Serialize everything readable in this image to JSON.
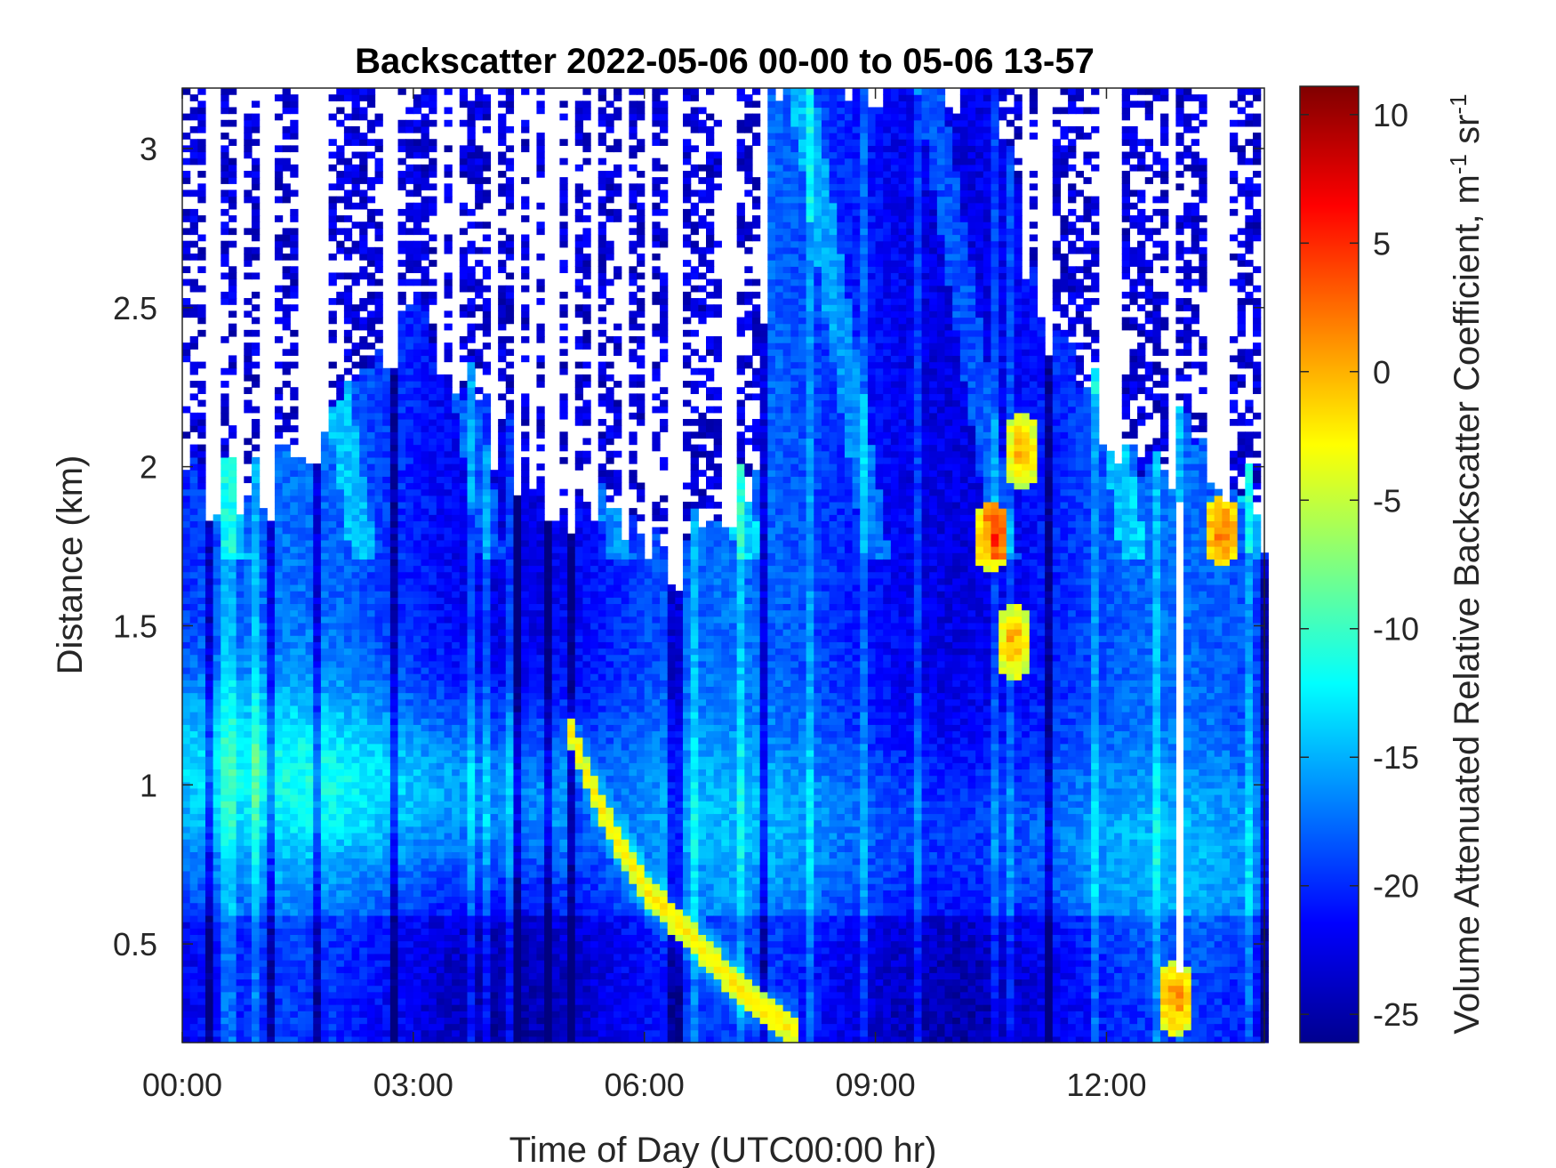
{
  "chart_data": {
    "type": "heatmap",
    "title": "Backscatter 2022-05-06 00-00 to 05-06 13-57",
    "xlabel": "Time of Day (UTC00:00 hr)",
    "ylabel": "Distance (km)",
    "colorbar_label": "Volume Attenuated Relative Backscatter Coefficient, m",
    "colorbar_label_sup1": "-1",
    "colorbar_label_mid": " sr",
    "colorbar_label_sup2": "-1",
    "colormap": "jet",
    "x_ticks": [
      {
        "value": 0,
        "label": "00:00"
      },
      {
        "value": 3,
        "label": "03:00"
      },
      {
        "value": 6,
        "label": "06:00"
      },
      {
        "value": 9,
        "label": "09:00"
      },
      {
        "value": 12,
        "label": "12:00"
      }
    ],
    "y_ticks": [
      {
        "value": 0.5,
        "label": "0.5"
      },
      {
        "value": 1,
        "label": "1"
      },
      {
        "value": 1.5,
        "label": "1.5"
      },
      {
        "value": 2,
        "label": "2"
      },
      {
        "value": 2.5,
        "label": "2.5"
      },
      {
        "value": 3,
        "label": "3"
      }
    ],
    "colorbar_ticks": [
      {
        "value": -25,
        "label": "-25"
      },
      {
        "value": -20,
        "label": "-20"
      },
      {
        "value": -15,
        "label": "-15"
      },
      {
        "value": -10,
        "label": "-10"
      },
      {
        "value": -5,
        "label": "-5"
      },
      {
        "value": 0,
        "label": "0"
      },
      {
        "value": 5,
        "label": "5"
      },
      {
        "value": 10,
        "label": "10"
      }
    ],
    "xlim": [
      0,
      14.05
    ],
    "ylim": [
      0.19,
      3.19
    ],
    "clim": [
      -26.1,
      11.1
    ],
    "time_resolution_hr": 0.1,
    "height_bin_km": 0.02,
    "features": {
      "cloud_top_boundary_km": [
        {
          "t": 0.0,
          "h": 1.97
        },
        {
          "t": 1.0,
          "h": 1.9
        },
        {
          "t": 2.0,
          "h": 2.2
        },
        {
          "t": 3.0,
          "h": 2.5
        },
        {
          "t": 4.0,
          "h": 2.1
        },
        {
          "t": 5.0,
          "h": 1.9
        },
        {
          "t": 5.6,
          "h": 1.85
        },
        {
          "t": 6.5,
          "h": 1.72
        },
        {
          "t": 7.0,
          "h": 1.85
        },
        {
          "t": 7.5,
          "h": 1.95
        },
        {
          "t": 7.6,
          "h": 3.2
        },
        {
          "t": 10.5,
          "h": 3.2
        },
        {
          "t": 11.0,
          "h": 2.6
        },
        {
          "t": 11.8,
          "h": 2.2
        },
        {
          "t": 12.6,
          "h": 1.9
        },
        {
          "t": 13.0,
          "h": 2.1
        },
        {
          "t": 14.05,
          "h": 1.85
        }
      ],
      "aerosol_layer_descent": [
        {
          "t": 5.0,
          "h": 1.2
        },
        {
          "t": 5.3,
          "h": 1.0
        },
        {
          "t": 5.6,
          "h": 0.85
        },
        {
          "t": 6.0,
          "h": 0.68
        },
        {
          "t": 6.5,
          "h": 0.55
        },
        {
          "t": 7.0,
          "h": 0.42
        },
        {
          "t": 7.5,
          "h": 0.3
        },
        {
          "t": 8.0,
          "h": 0.22
        }
      ],
      "high_value_patches": [
        {
          "t": 10.5,
          "h": 1.78,
          "value": 2
        },
        {
          "t": 10.9,
          "h": 2.05,
          "value": 1
        },
        {
          "t": 10.8,
          "h": 1.45,
          "value": 1
        },
        {
          "t": 13.5,
          "h": 1.8,
          "value": 3
        },
        {
          "t": 12.9,
          "h": 0.33,
          "value": 2
        }
      ]
    }
  }
}
